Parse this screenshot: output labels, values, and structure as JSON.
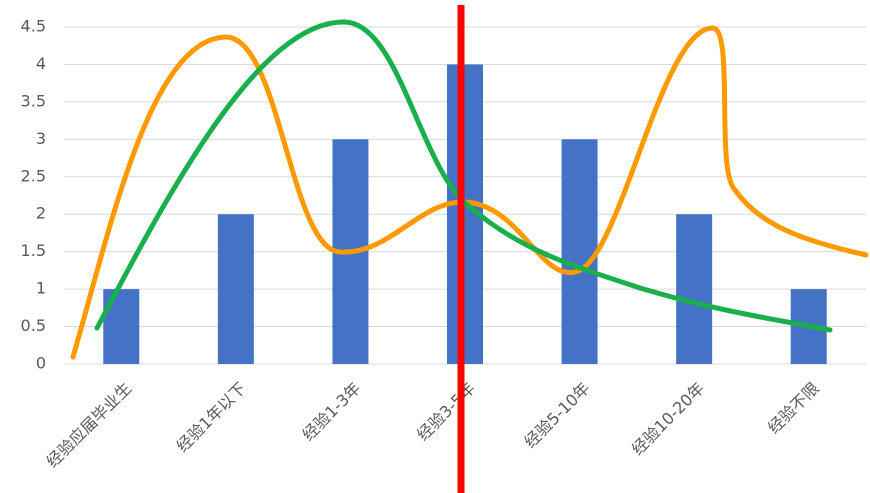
{
  "chart_data": {
    "type": "bar",
    "categories": [
      "经验应届毕业生",
      "经验1年以下",
      "经验1-3年",
      "经验3-5年",
      "经验5-10年",
      "经验10-20年",
      "经验不限"
    ],
    "values": [
      1,
      2,
      3,
      4,
      3,
      2,
      1
    ],
    "color": "#4472c4",
    "ylim": [
      0,
      4.5
    ],
    "yticks": [
      0,
      0.5,
      1,
      1.5,
      2,
      2.5,
      3,
      3.5,
      4,
      4.5
    ],
    "grid": true
  }
}
